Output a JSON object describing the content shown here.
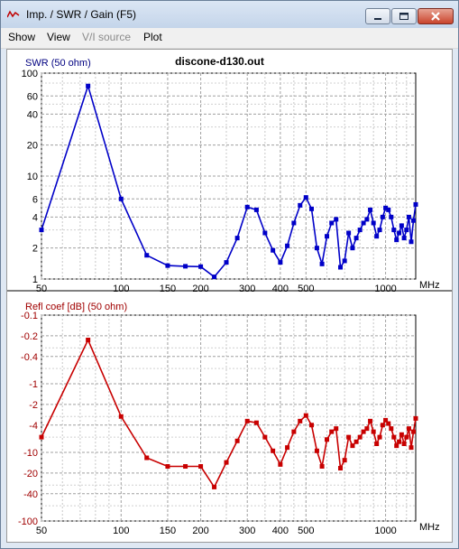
{
  "window": {
    "title": "Imp. / SWR / Gain   (F5)",
    "min_icon": "minimize-icon",
    "max_icon": "maximize-icon",
    "close_icon": "close-icon"
  },
  "menu": [
    {
      "label": "Show",
      "enabled": true
    },
    {
      "label": "View",
      "enabled": true
    },
    {
      "label": "V/I source",
      "enabled": false
    },
    {
      "label": "Plot",
      "enabled": true
    }
  ],
  "chart_data": [
    {
      "type": "line",
      "title": "discone-d130.out",
      "ylabel": "SWR (50 ohm)",
      "xlabel": "MHz",
      "x_scale": "log",
      "y_scale": "log",
      "xlim": [
        50,
        1300
      ],
      "ylim": [
        1,
        100
      ],
      "x_ticks": [
        "50",
        "100",
        "150",
        "200",
        "300",
        "400",
        "500",
        "1000"
      ],
      "y_ticks": [
        "100",
        "60",
        "40",
        "20",
        "10",
        "6",
        "4",
        "2",
        "1"
      ],
      "grid": true,
      "color": "#0000c8",
      "series": [
        {
          "x": [
            50,
            75,
            100,
            125,
            150,
            175,
            200,
            225,
            250,
            275,
            300,
            325,
            350,
            375,
            400,
            425,
            450,
            475,
            500,
            525,
            550,
            575,
            600,
            625,
            650,
            675,
            700,
            725,
            750,
            775,
            800,
            825,
            850,
            875,
            900,
            925,
            950,
            975,
            1000,
            1025,
            1050,
            1075,
            1100,
            1125,
            1150,
            1175,
            1200,
            1225,
            1250,
            1275,
            1300
          ],
          "y": [
            3.0,
            75,
            6.0,
            1.7,
            1.35,
            1.33,
            1.32,
            1.05,
            1.45,
            2.5,
            5.0,
            4.7,
            2.8,
            1.9,
            1.45,
            2.1,
            3.5,
            5.2,
            6.2,
            4.8,
            2.0,
            1.4,
            2.6,
            3.5,
            3.8,
            1.3,
            1.5,
            2.8,
            2.0,
            2.5,
            3.0,
            3.5,
            3.8,
            4.7,
            3.5,
            2.6,
            3.0,
            4.0,
            4.9,
            4.7,
            4.0,
            3.0,
            2.4,
            2.8,
            3.3,
            2.5,
            3.0,
            4.0,
            2.3,
            3.7,
            5.3
          ]
        }
      ]
    },
    {
      "type": "line",
      "ylabel": "Refl coef [dB] (50 ohm)",
      "xlabel": "MHz",
      "x_scale": "log",
      "xlim": [
        50,
        1300
      ],
      "ylim": [
        -100,
        -0.1
      ],
      "x_ticks": [
        "50",
        "100",
        "150",
        "200",
        "300",
        "400",
        "500",
        "1000"
      ],
      "y_ticks": [
        "-0.1",
        "-0.2",
        "-0.4",
        "-1",
        "-2",
        "-4",
        "-10",
        "-20",
        "-40",
        "-100"
      ],
      "grid": true,
      "color": "#c80000",
      "series": [
        {
          "x": [
            50,
            75,
            100,
            125,
            150,
            175,
            200,
            225,
            250,
            275,
            300,
            325,
            350,
            375,
            400,
            425,
            450,
            475,
            500,
            525,
            550,
            575,
            600,
            625,
            650,
            675,
            700,
            725,
            750,
            775,
            800,
            825,
            850,
            875,
            900,
            925,
            950,
            975,
            1000,
            1025,
            1050,
            1075,
            1100,
            1125,
            1150,
            1175,
            1200,
            1225,
            1250,
            1275,
            1300
          ],
          "y": [
            -6.0,
            -0.23,
            -3.0,
            -12,
            -16,
            -16,
            -16,
            -32,
            -14,
            -6.8,
            -3.5,
            -3.7,
            -6.0,
            -9.5,
            -15,
            -8.5,
            -5.0,
            -3.5,
            -2.9,
            -4.0,
            -9.5,
            -16,
            -6.5,
            -5.0,
            -4.5,
            -17,
            -13,
            -6.0,
            -8.0,
            -7.0,
            -6.0,
            -5.0,
            -4.5,
            -3.5,
            -5.0,
            -7.5,
            -6.0,
            -4.0,
            -3.4,
            -3.8,
            -4.5,
            -6.0,
            -8.0,
            -7.0,
            -5.5,
            -7.5,
            -6.0,
            -4.5,
            -8.5,
            -5.0,
            -3.2
          ]
        }
      ]
    }
  ]
}
